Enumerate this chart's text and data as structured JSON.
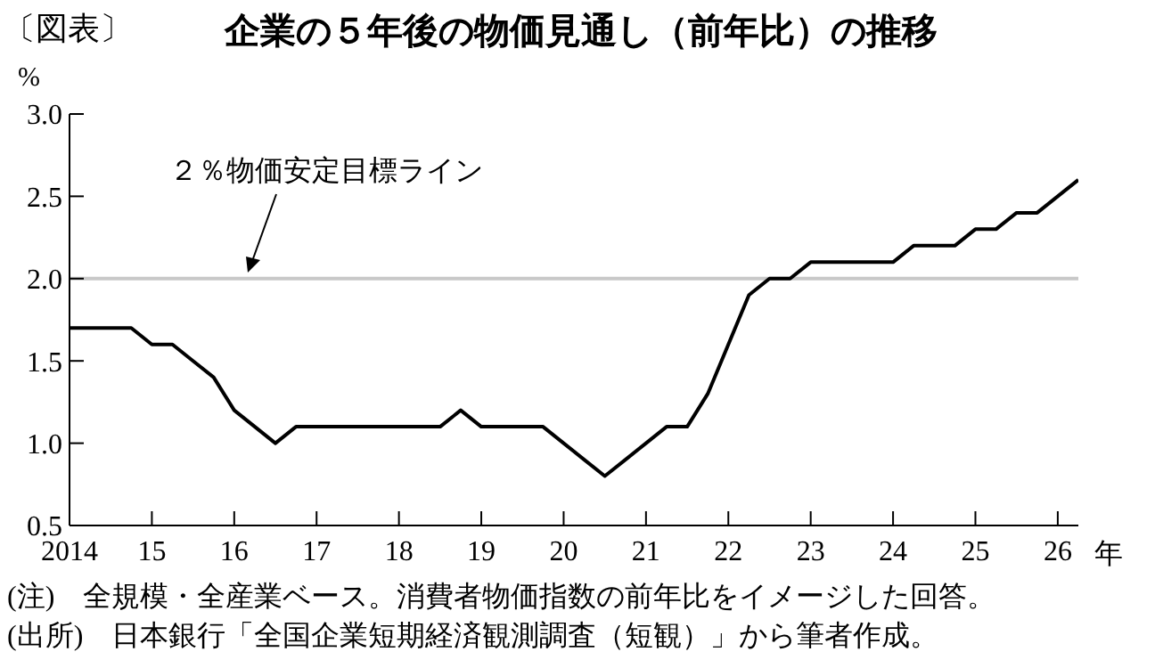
{
  "chart_data": {
    "type": "line",
    "title": "企業の５年後の物価見通し（前年比）の推移",
    "ylabel": "%",
    "xlabel": "年",
    "annotations": [
      "〔図表〕",
      "(注)　全規模・全産業ベース。消費者物価指数の前年比をイメージした回答。",
      "(出所)　日本銀行「全国企業短期経済観測調査（短観）」から筆者作成。"
    ],
    "x": [
      2014,
      2014.25,
      2014.5,
      2014.75,
      2015,
      2015.25,
      2015.5,
      2015.75,
      2016,
      2016.25,
      2016.5,
      2016.75,
      2017,
      2017.25,
      2017.5,
      2017.75,
      2018,
      2018.25,
      2018.5,
      2018.75,
      2019,
      2019.25,
      2019.5,
      2019.75,
      2020,
      2020.25,
      2020.5,
      2020.75,
      2021,
      2021.25,
      2021.5,
      2021.75,
      2022,
      2022.25,
      2022.5,
      2022.75,
      2023,
      2023.25,
      2023.5,
      2023.75,
      2024,
      2024.25,
      2024.5,
      2024.75,
      2025,
      2025.25,
      2025.5,
      2025.75,
      2026,
      2026.25
    ],
    "series": [
      {
        "color": "#000000",
        "values": [
          1.7,
          1.7,
          1.7,
          1.7,
          1.6,
          1.6,
          1.5,
          1.4,
          1.2,
          1.1,
          1.0,
          1.1,
          1.1,
          1.1,
          1.1,
          1.1,
          1.1,
          1.1,
          1.1,
          1.2,
          1.1,
          1.1,
          1.1,
          1.1,
          1.0,
          0.9,
          0.8,
          0.9,
          1.0,
          1.1,
          1.1,
          1.3,
          1.6,
          1.9,
          2.0,
          2.0,
          2.1,
          2.1,
          2.1,
          2.1,
          2.1,
          2.2,
          2.2,
          2.2,
          2.3,
          2.3,
          2.4,
          2.4,
          2.5,
          2.6
        ]
      }
    ],
    "xlim": [
      2014,
      2026.25
    ],
    "xticks": [
      {
        "value": 2014,
        "label": "2014"
      },
      {
        "value": 2015,
        "label": "15"
      },
      {
        "value": 2016,
        "label": "16"
      },
      {
        "value": 2017,
        "label": "17"
      },
      {
        "value": 2018,
        "label": "18"
      },
      {
        "value": 2019,
        "label": "19"
      },
      {
        "value": 2020,
        "label": "20"
      },
      {
        "value": 2021,
        "label": "21"
      },
      {
        "value": 2022,
        "label": "22"
      },
      {
        "value": 2023,
        "label": "23"
      },
      {
        "value": 2024,
        "label": "24"
      },
      {
        "value": 2025,
        "label": "25"
      },
      {
        "value": 2026,
        "label": "26"
      }
    ],
    "ylim": [
      0.5,
      3.0
    ],
    "yticks": [
      {
        "value": 0.5,
        "label": "0.5"
      },
      {
        "value": 1.0,
        "label": "1.0"
      },
      {
        "value": 1.5,
        "label": "1.5"
      },
      {
        "value": 2.0,
        "label": "2.0"
      },
      {
        "value": 2.5,
        "label": "2.5"
      },
      {
        "value": 3.0,
        "label": "3.0"
      }
    ],
    "ref_lines": [
      {
        "axis": "y",
        "value": 2.0,
        "label": "２％物価安定目標ライン",
        "color": "#c8c8c8"
      }
    ],
    "grid": false,
    "legend": false,
    "marker": "none",
    "line_style": "solid"
  }
}
